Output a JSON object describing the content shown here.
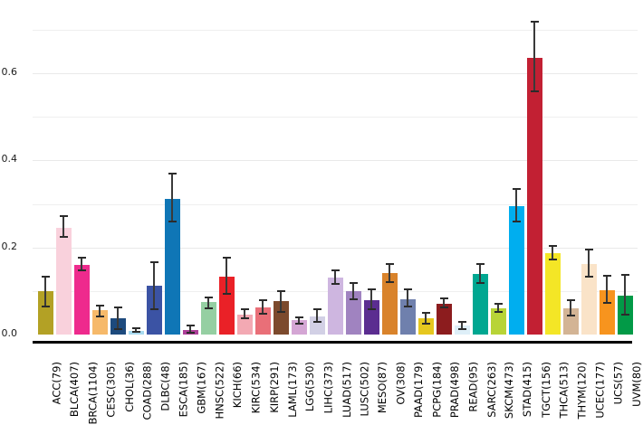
{
  "figure": {
    "background_color": "#ffffff",
    "grid_color": "#efefef",
    "axis_line_color": "#000000",
    "error_bar_color": "#3a3a3a",
    "tick_label_color": "#1a1a1a"
  },
  "chart_data": {
    "type": "bar",
    "title": "",
    "xlabel": "",
    "ylabel": "",
    "ylim": [
      0,
      0.737
    ],
    "yticks": [
      0.0,
      0.2,
      0.4,
      0.6
    ],
    "ytick_labels": [
      "0.0",
      "0.2",
      "0.4",
      "0.6"
    ],
    "gridline_values": [
      0.1,
      0.2,
      0.3,
      0.4,
      0.5,
      0.6,
      0.7
    ],
    "grid": true,
    "legend_position": "none",
    "error_bars": true,
    "categories": [
      "ACC(79)",
      "BLCA(407)",
      "BRCA(1104)",
      "CESC(305)",
      "CHOL(36)",
      "COAD(288)",
      "DLBC(48)",
      "ESCA(185)",
      "GBM(167)",
      "HNSC(522)",
      "KICH(66)",
      "KIRC(534)",
      "KIRP(291)",
      "LAML(173)",
      "LGG(530)",
      "LIHC(373)",
      "LUAD(517)",
      "LUSC(502)",
      "MESO(87)",
      "OV(308)",
      "PAAD(179)",
      "PCPG(184)",
      "PRAD(498)",
      "READ(95)",
      "SARC(263)",
      "SKCM(473)",
      "STAD(415)",
      "TGCT(156)",
      "THCA(513)",
      "THYM(120)",
      "UCEC(177)",
      "UCS(57)",
      "UVM(80)"
    ],
    "values": [
      0.1,
      0.245,
      0.161,
      0.056,
      0.037,
      0.009,
      0.112,
      0.312,
      0.01,
      0.074,
      0.134,
      0.046,
      0.062,
      0.076,
      0.033,
      0.041,
      0.13,
      0.1,
      0.078,
      0.141,
      0.082,
      0.037,
      0.07,
      0.02,
      0.139,
      0.061,
      0.295,
      0.636,
      0.188,
      0.06,
      0.163,
      0.102,
      0.089
    ],
    "error_low": [
      0.064,
      0.225,
      0.147,
      0.042,
      0.013,
      0.006,
      0.059,
      0.259,
      0.005,
      0.06,
      0.093,
      0.037,
      0.048,
      0.051,
      0.024,
      0.03,
      0.117,
      0.081,
      0.058,
      0.12,
      0.065,
      0.024,
      0.062,
      0.013,
      0.118,
      0.051,
      0.26,
      0.558,
      0.172,
      0.043,
      0.134,
      0.072,
      0.046
    ],
    "error_high": [
      0.134,
      0.272,
      0.176,
      0.067,
      0.063,
      0.014,
      0.166,
      0.37,
      0.021,
      0.086,
      0.176,
      0.058,
      0.078,
      0.1,
      0.04,
      0.058,
      0.147,
      0.119,
      0.103,
      0.162,
      0.103,
      0.049,
      0.084,
      0.029,
      0.162,
      0.07,
      0.334,
      0.718,
      0.204,
      0.079,
      0.195,
      0.136,
      0.138
    ],
    "bar_colors": [
      "#b3a125",
      "#f9d1dc",
      "#ee2a8d",
      "#f6b96a",
      "#1d4a7d",
      "#a8daf0",
      "#3b53a4",
      "#0f76b6",
      "#ad3e98",
      "#95cfa2",
      "#ea2127",
      "#f3a9b3",
      "#e96f78",
      "#7c4a2d",
      "#d4a6d4",
      "#d2d0e5",
      "#ceb6e0",
      "#a083c0",
      "#5b2d90",
      "#d9832b",
      "#6f80ad",
      "#e6c71f",
      "#8c1c1e",
      "#deeff8",
      "#00a791",
      "#b8d437",
      "#00aeef",
      "#c22033",
      "#f4e626",
      "#d3b495",
      "#fae3c8",
      "#f7941e",
      "#029a47"
    ]
  }
}
